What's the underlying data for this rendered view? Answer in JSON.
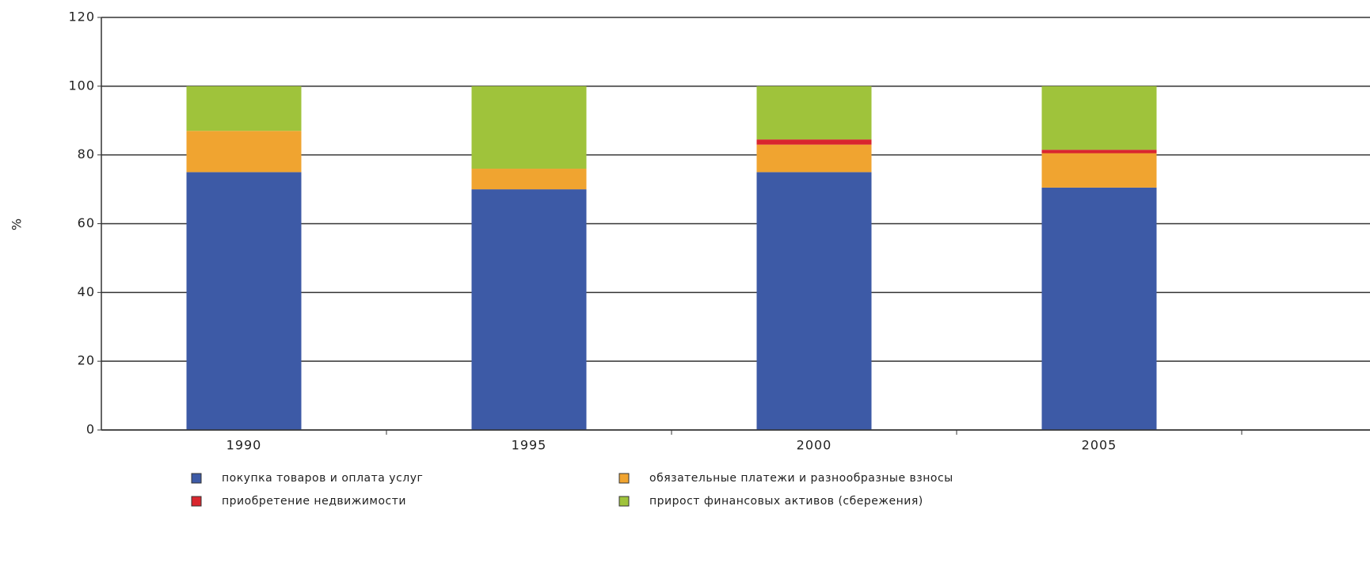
{
  "chart_data": {
    "type": "stacked_bar",
    "y_label": "%",
    "categories": [
      "1990",
      "1995",
      "2000",
      "2005"
    ],
    "series": [
      {
        "name": "покупка товаров и оплата услуг",
        "color": "#3d5aa6",
        "values": [
          75,
          70,
          75,
          70.5
        ]
      },
      {
        "name": "обязательные платежи и разнообразные взносы",
        "color": "#f0a430",
        "values": [
          12,
          6,
          8,
          10
        ]
      },
      {
        "name": "приобретение недвижимости",
        "color": "#d9262e",
        "values": [
          0,
          0,
          1.5,
          1
        ]
      },
      {
        "name": "прирост финансовых активов (сбережения)",
        "color": "#9fc33b",
        "values": [
          13,
          24,
          15.5,
          18.5
        ]
      }
    ],
    "ylim": [
      0,
      120
    ],
    "yticks": [
      0,
      20,
      40,
      60,
      80,
      100,
      120
    ],
    "grid": true
  }
}
